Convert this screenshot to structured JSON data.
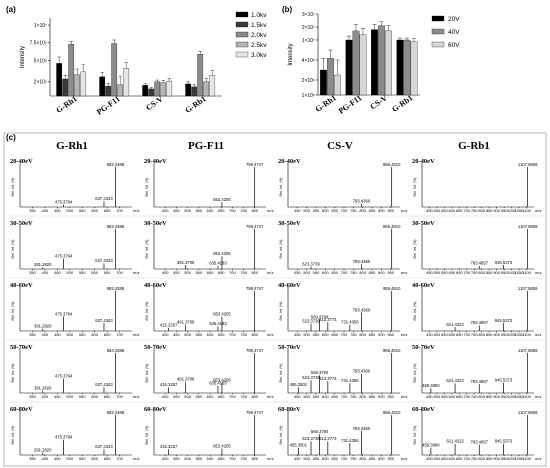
{
  "chart_data": [
    {
      "panel": "(a)",
      "type": "bar",
      "ylabel": "Intensity",
      "yticks": [
        "2×10⁶",
        "5×10⁶",
        "7.5×10⁶",
        "1×10⁷"
      ],
      "ylim": [
        0,
        11000000
      ],
      "categories": [
        "G-Rh1",
        "PG-F11",
        "CS-V",
        "G-Rb1"
      ],
      "legend_position": "top-right",
      "series": [
        {
          "name": "1.0kv",
          "color": "#000000",
          "values": [
            4600000,
            2700000,
            1500000,
            1700000
          ],
          "errors": [
            900000,
            600000,
            250000,
            300000
          ]
        },
        {
          "name": "1.5kv",
          "color": "#3a3a3a",
          "values": [
            2400000,
            1400000,
            1000000,
            1300000
          ],
          "errors": [
            500000,
            400000,
            200000,
            300000
          ]
        },
        {
          "name": "2.0kv",
          "color": "#8c8c8c",
          "values": [
            7300000,
            7400000,
            2000000,
            5900000
          ],
          "errors": [
            400000,
            500000,
            250000,
            400000
          ]
        },
        {
          "name": "2.5kv",
          "color": "#b5b5b5",
          "values": [
            3000000,
            1600000,
            1900000,
            2000000
          ],
          "errors": [
            800000,
            1200000,
            300000,
            500000
          ]
        },
        {
          "name": "3.0kv",
          "color": "#e6e6e6",
          "values": [
            3400000,
            3900000,
            2100000,
            2900000
          ],
          "errors": [
            1000000,
            800000,
            400000,
            700000
          ]
        }
      ]
    },
    {
      "panel": "(b)",
      "type": "bar",
      "ylabel": "Intensity",
      "yticks": [
        "1×10⁶",
        "2×10⁶",
        "4×10⁶",
        "1×10⁷",
        "2×10⁷",
        "3×10⁷"
      ],
      "categories": [
        "G-Rh1",
        "PG-F11",
        "CS-V",
        "G-Rb1"
      ],
      "legend_position": "right",
      "series": [
        {
          "name": "20V",
          "color": "#000000",
          "values": [
            3000000,
            10000000,
            18000000,
            10000000
          ],
          "errors": [
            1500000,
            3000000,
            4000000,
            1500000
          ]
        },
        {
          "name": "40V",
          "color": "#8c8c8c",
          "values": [
            4500000,
            17000000,
            21000000,
            10000000
          ],
          "errors": [
            2500000,
            5000000,
            3000000,
            1500000
          ]
        },
        {
          "name": "60V",
          "color": "#d6d6d6",
          "values": [
            2500000,
            14000000,
            17000000,
            9500000
          ],
          "errors": [
            1500000,
            5000000,
            4000000,
            1500000
          ]
        }
      ]
    },
    {
      "panel": "(c)",
      "type": "spectra",
      "ylabel": "Rel. Int. (%)",
      "xlabel": "m/z",
      "compounds": [
        {
          "name": "G-Rh1",
          "xmin": 300,
          "xmax": 750,
          "xticks": [
            350,
            400,
            450,
            500,
            550,
            600,
            650,
            700
          ]
        },
        {
          "name": "PG-F11",
          "xmin": 350,
          "xmax": 850,
          "xticks": [
            400,
            450,
            500,
            550,
            600,
            650,
            700,
            750,
            800
          ]
        },
        {
          "name": "CS-V",
          "xmin": 400,
          "xmax": 1000,
          "xticks": [
            450,
            500,
            550,
            600,
            650,
            700,
            750,
            800,
            850,
            900,
            950
          ]
        },
        {
          "name": "G-Rb1",
          "xmin": 400,
          "xmax": 1150,
          "xticks": [
            450,
            500,
            550,
            600,
            650,
            700,
            750,
            800,
            850,
            900,
            950,
            1000,
            1050,
            1100
          ]
        }
      ],
      "rows": [
        "20-40eV",
        "30-50eV",
        "40-60eV",
        "50-70eV",
        "60-80eV"
      ],
      "spectra": [
        [
          {
            "peaks": [
              [
                683.4388,
                100
              ],
              [
                637.4343,
                14
              ],
              [
                475.3764,
                6
              ]
            ],
            "labels": [
              "683.4388",
              "637.4343",
              "475.3764"
            ]
          },
          {
            "peaks": [
              [
                799.4747,
                100
              ],
              [
                653.4205,
                12
              ]
            ],
            "labels": [
              "799.4747",
              "653.4205"
            ]
          },
          {
            "peaks": [
              [
                955.491,
                100
              ],
              [
                793.436,
                8
              ]
            ],
            "labels": [
              "955.4910",
              "793.4360"
            ]
          },
          {
            "peaks": [
              [
                1107.5859,
                100
              ]
            ],
            "labels": [
              "1107.5859"
            ]
          }
        ],
        [
          {
            "peaks": [
              [
                683.4388,
                100
              ],
              [
                637.4343,
                14
              ],
              [
                475.3764,
                26
              ],
              [
                391.282,
                4
              ]
            ],
            "labels": [
              "683.4388",
              "637.4343",
              "475.3764",
              "391.2820"
            ]
          },
          {
            "peaks": [
              [
                799.4747,
                100
              ],
              [
                653.4205,
                32
              ],
              [
                635.4183,
                8
              ],
              [
                491.3708,
                10
              ]
            ],
            "labels": [
              "799.4747",
              "653.4205",
              "635.4183",
              "491.3708"
            ]
          },
          {
            "peaks": [
              [
                955.491,
                100
              ],
              [
                793.436,
                12
              ],
              [
                523.3739,
                6
              ]
            ],
            "labels": [
              "955.4910",
              "793.4360",
              "523.3739"
            ]
          },
          {
            "peaks": [
              [
                1107.5859,
                100
              ],
              [
                945.5373,
                10
              ],
              [
                783.4857,
                8
              ]
            ],
            "labels": [
              "1107.5859",
              "945.5373",
              "783.4857"
            ]
          }
        ],
        [
          {
            "peaks": [
              [
                683.4388,
                100
              ],
              [
                637.4343,
                20
              ],
              [
                475.3764,
                36
              ],
              [
                391.282,
                6
              ]
            ],
            "labels": [
              "683.4388",
              "637.4343",
              "475.3764",
              "391.2820"
            ]
          },
          {
            "peaks": [
              [
                799.4747,
                100
              ],
              [
                653.4205,
                36
              ],
              [
                635.4183,
                12
              ],
              [
                491.3708,
                16
              ],
              [
                415.3257,
                8
              ]
            ],
            "labels": [
              "799.4747",
              "653.4205",
              "635.4183",
              "491.3708",
              "415.3257"
            ]
          },
          {
            "peaks": [
              [
                955.491,
                100
              ],
              [
                793.436,
                46
              ],
              [
                731.4356,
                16
              ],
              [
                613.3774,
                22
              ],
              [
                569.3784,
                28
              ],
              [
                523.3739,
                18
              ]
            ],
            "labels": [
              "955.4910",
              "793.4360",
              "731.4356",
              "613.3774",
              "569.3784",
              "523.3739"
            ]
          },
          {
            "peaks": [
              [
                1107.5859,
                100
              ],
              [
                945.5373,
                20
              ],
              [
                783.4857,
                14
              ],
              [
                621.4322,
                10
              ]
            ],
            "labels": [
              "1107.5859",
              "945.5373",
              "783.4857",
              "621.4322"
            ]
          }
        ],
        [
          {
            "peaks": [
              [
                683.4388,
                100
              ],
              [
                637.4343,
                14
              ],
              [
                475.3764,
                36
              ],
              [
                391.282,
                6
              ]
            ],
            "labels": [
              "683.4388",
              "637.4343",
              "475.3764",
              "391.2820"
            ]
          },
          {
            "peaks": [
              [
                799.4747,
                100
              ],
              [
                653.4205,
                26
              ],
              [
                635.4183,
                18
              ],
              [
                491.3708,
                28
              ],
              [
                415.3257,
                14
              ]
            ],
            "labels": [
              "799.4747",
              "653.4205",
              "635.4183",
              "491.3708",
              "415.3257"
            ]
          },
          {
            "peaks": [
              [
                955.491,
                100
              ],
              [
                793.436,
                48
              ],
              [
                731.4356,
                24
              ],
              [
                613.3774,
                30
              ],
              [
                569.3784,
                44
              ],
              [
                523.3739,
                32
              ],
              [
                455.3501,
                14
              ]
            ],
            "labels": [
              "955.4910",
              "793.4360",
              "731.4356",
              "613.3774",
              "569.3784",
              "523.3739",
              "455.3501"
            ]
          },
          {
            "peaks": [
              [
                1107.5859,
                100
              ],
              [
                945.5373,
                26
              ],
              [
                783.4857,
                22
              ],
              [
                621.4322,
                24
              ],
              [
                459.386,
                12
              ]
            ],
            "labels": [
              "1107.5859",
              "945.5373",
              "783.4857",
              "621.4322",
              "459.3860"
            ]
          }
        ],
        [
          {
            "peaks": [
              [
                683.4388,
                100
              ],
              [
                637.4343,
                14
              ],
              [
                475.3764,
                38
              ],
              [
                391.282,
                6
              ]
            ],
            "labels": [
              "683.4388",
              "637.4343",
              "475.3764",
              "391.2820"
            ]
          },
          {
            "peaks": [
              [
                799.4747,
                100
              ],
              [
                653.4205,
                16
              ],
              [
                415.3257,
                14
              ]
            ],
            "labels": [
              "799.4747",
              "653.4205",
              "415.3257"
            ]
          },
          {
            "peaks": [
              [
                955.491,
                100
              ],
              [
                793.436,
                60
              ],
              [
                731.4356,
                30
              ],
              [
                613.3774,
                34
              ],
              [
                569.3784,
                52
              ],
              [
                523.3739,
                34
              ],
              [
                455.3501,
                18
              ]
            ],
            "labels": [
              "955.4910",
              "793.4360",
              "731.4356",
              "613.3774",
              "569.3784",
              "523.3739",
              "455.3501"
            ]
          },
          {
            "peaks": [
              [
                1107.5859,
                100
              ],
              [
                945.5373,
                28
              ],
              [
                783.4857,
                26
              ],
              [
                621.4322,
                28
              ],
              [
                459.386,
                18
              ]
            ],
            "labels": [
              "1107.5859",
              "945.5373",
              "783.4857",
              "621.4322",
              "459.3860"
            ]
          }
        ]
      ]
    }
  ]
}
